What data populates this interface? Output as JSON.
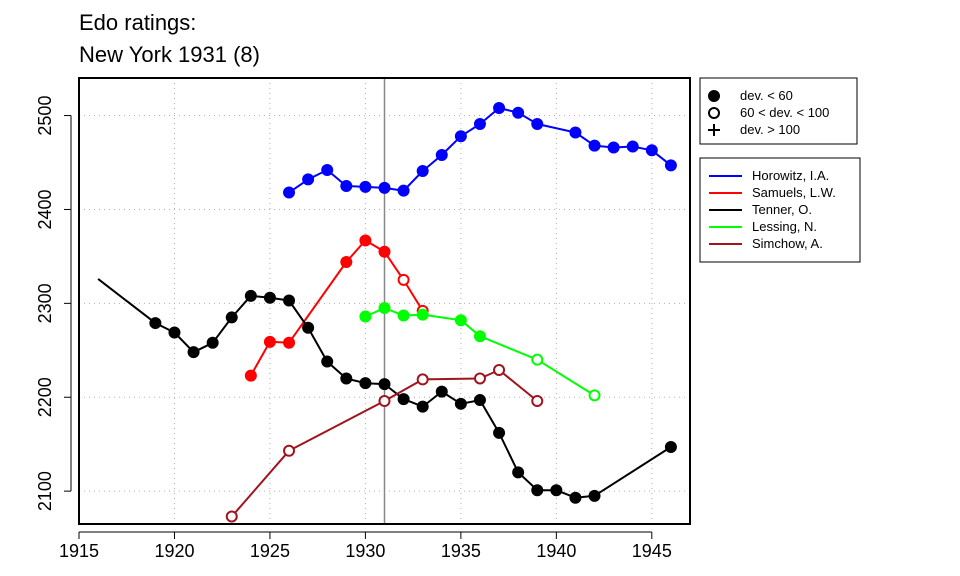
{
  "chart_data": {
    "type": "line",
    "title": "Edo ratings:",
    "subtitle": "New York 1931 (8)",
    "xlabel": "",
    "ylabel": "",
    "xlim": [
      1915,
      1947
    ],
    "ylim": [
      2065,
      2540
    ],
    "x_ticks": [
      1915,
      1920,
      1925,
      1930,
      1935,
      1940,
      1945
    ],
    "y_ticks": [
      2100,
      2200,
      2300,
      2400,
      2500
    ],
    "grid": true,
    "reference_line_x": 1931,
    "marker_legend": [
      {
        "symbol": "filled",
        "label": "dev. < 60"
      },
      {
        "symbol": "open",
        "label": "60 < dev. < 100"
      },
      {
        "symbol": "plus",
        "label": "dev. > 100"
      }
    ],
    "series": [
      {
        "name": "Horowitz, I.A.",
        "color": "#0000ff",
        "points": [
          {
            "x": 1926,
            "y": 2418,
            "m": "filled"
          },
          {
            "x": 1927,
            "y": 2432,
            "m": "filled"
          },
          {
            "x": 1928,
            "y": 2442,
            "m": "filled"
          },
          {
            "x": 1929,
            "y": 2425,
            "m": "filled"
          },
          {
            "x": 1930,
            "y": 2424,
            "m": "filled"
          },
          {
            "x": 1931,
            "y": 2423,
            "m": "filled"
          },
          {
            "x": 1932,
            "y": 2420,
            "m": "filled"
          },
          {
            "x": 1933,
            "y": 2441,
            "m": "filled"
          },
          {
            "x": 1934,
            "y": 2458,
            "m": "filled"
          },
          {
            "x": 1935,
            "y": 2478,
            "m": "filled"
          },
          {
            "x": 1936,
            "y": 2491,
            "m": "filled"
          },
          {
            "x": 1937,
            "y": 2508,
            "m": "filled"
          },
          {
            "x": 1938,
            "y": 2503,
            "m": "filled"
          },
          {
            "x": 1939,
            "y": 2491,
            "m": "filled"
          },
          {
            "x": 1941,
            "y": 2482,
            "m": "filled"
          },
          {
            "x": 1942,
            "y": 2468,
            "m": "filled"
          },
          {
            "x": 1943,
            "y": 2466,
            "m": "filled"
          },
          {
            "x": 1944,
            "y": 2467,
            "m": "filled"
          },
          {
            "x": 1945,
            "y": 2463,
            "m": "filled"
          },
          {
            "x": 1946,
            "y": 2447,
            "m": "filled"
          }
        ]
      },
      {
        "name": "Samuels, L.W.",
        "color": "#ff0000",
        "points": [
          {
            "x": 1924,
            "y": 2223,
            "m": "filled"
          },
          {
            "x": 1925,
            "y": 2259,
            "m": "filled"
          },
          {
            "x": 1926,
            "y": 2258,
            "m": "filled"
          },
          {
            "x": 1929,
            "y": 2344,
            "m": "filled"
          },
          {
            "x": 1930,
            "y": 2367,
            "m": "filled"
          },
          {
            "x": 1931,
            "y": 2355,
            "m": "filled"
          },
          {
            "x": 1932,
            "y": 2325,
            "m": "open"
          },
          {
            "x": 1933,
            "y": 2292,
            "m": "open"
          }
        ]
      },
      {
        "name": "Tenner, O.",
        "color": "#000000",
        "points": [
          {
            "x": 1916,
            "y": 2326,
            "m": "none"
          },
          {
            "x": 1919,
            "y": 2279,
            "m": "filled"
          },
          {
            "x": 1920,
            "y": 2269,
            "m": "filled"
          },
          {
            "x": 1921,
            "y": 2248,
            "m": "filled"
          },
          {
            "x": 1922,
            "y": 2258,
            "m": "filled"
          },
          {
            "x": 1923,
            "y": 2285,
            "m": "filled"
          },
          {
            "x": 1924,
            "y": 2308,
            "m": "filled"
          },
          {
            "x": 1925,
            "y": 2306,
            "m": "filled"
          },
          {
            "x": 1926,
            "y": 2303,
            "m": "filled"
          },
          {
            "x": 1927,
            "y": 2274,
            "m": "filled"
          },
          {
            "x": 1928,
            "y": 2238,
            "m": "filled"
          },
          {
            "x": 1929,
            "y": 2220,
            "m": "filled"
          },
          {
            "x": 1930,
            "y": 2215,
            "m": "filled"
          },
          {
            "x": 1931,
            "y": 2214,
            "m": "filled"
          },
          {
            "x": 1932,
            "y": 2198,
            "m": "filled"
          },
          {
            "x": 1933,
            "y": 2190,
            "m": "filled"
          },
          {
            "x": 1934,
            "y": 2206,
            "m": "filled"
          },
          {
            "x": 1935,
            "y": 2193,
            "m": "filled"
          },
          {
            "x": 1936,
            "y": 2197,
            "m": "filled"
          },
          {
            "x": 1937,
            "y": 2162,
            "m": "filled"
          },
          {
            "x": 1938,
            "y": 2120,
            "m": "filled"
          },
          {
            "x": 1939,
            "y": 2101,
            "m": "filled"
          },
          {
            "x": 1940,
            "y": 2101,
            "m": "filled"
          },
          {
            "x": 1941,
            "y": 2093,
            "m": "filled"
          },
          {
            "x": 1942,
            "y": 2095,
            "m": "filled"
          },
          {
            "x": 1946,
            "y": 2147,
            "m": "filled"
          }
        ]
      },
      {
        "name": "Lessing, N.",
        "color": "#00ff00",
        "points": [
          {
            "x": 1930,
            "y": 2286,
            "m": "filled"
          },
          {
            "x": 1931,
            "y": 2295,
            "m": "filled"
          },
          {
            "x": 1932,
            "y": 2287,
            "m": "filled"
          },
          {
            "x": 1933,
            "y": 2288,
            "m": "filled"
          },
          {
            "x": 1935,
            "y": 2282,
            "m": "filled"
          },
          {
            "x": 1936,
            "y": 2265,
            "m": "filled"
          },
          {
            "x": 1939,
            "y": 2240,
            "m": "open"
          },
          {
            "x": 1942,
            "y": 2202,
            "m": "open"
          }
        ]
      },
      {
        "name": "Simchow, A.",
        "color": "#a0141e",
        "points": [
          {
            "x": 1923,
            "y": 2073,
            "m": "open"
          },
          {
            "x": 1926,
            "y": 2143,
            "m": "open"
          },
          {
            "x": 1931,
            "y": 2196,
            "m": "open"
          },
          {
            "x": 1933,
            "y": 2219,
            "m": "open"
          },
          {
            "x": 1936,
            "y": 2220,
            "m": "open"
          },
          {
            "x": 1937,
            "y": 2229,
            "m": "open"
          },
          {
            "x": 1939,
            "y": 2196,
            "m": "open"
          }
        ]
      }
    ]
  }
}
